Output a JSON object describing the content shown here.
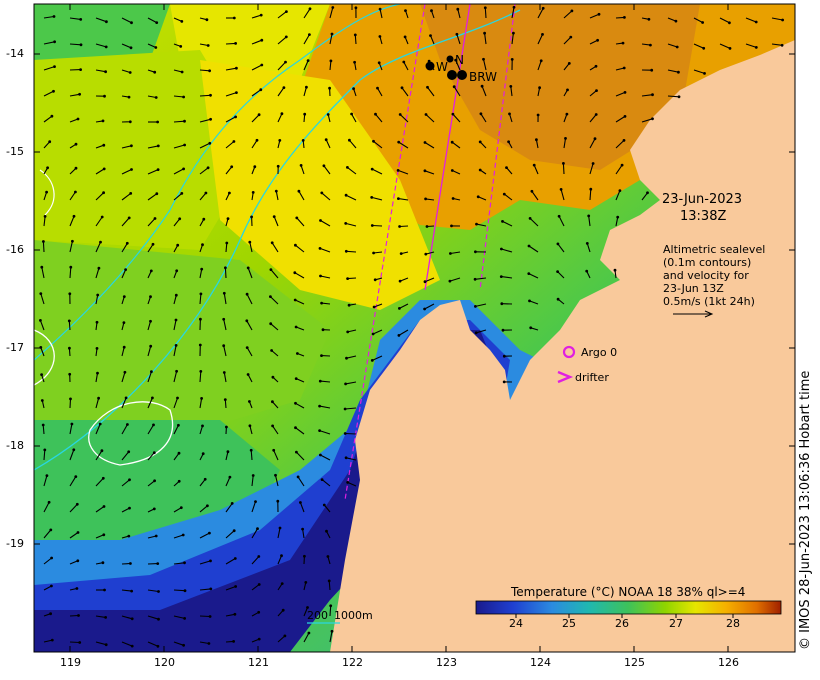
{
  "map": {
    "lon_ticks": [
      "119",
      "120",
      "121",
      "122",
      "123",
      "124",
      "125",
      "126"
    ],
    "lat_ticks": [
      "-14",
      "-15",
      "-16",
      "-17",
      "-18",
      "-19"
    ],
    "timestamp": {
      "date": "23-Jun-2023",
      "time": "13:38Z"
    },
    "sealevel_note": [
      "Altimetric sealevel",
      "(0.1m contours)",
      "and velocity for",
      "23-Jun 13Z",
      "0.5m/s (1kt 24h)"
    ],
    "legend": {
      "argo": "Argo 0",
      "drifter": "drifter"
    },
    "stations": [
      {
        "id": "W",
        "label": "W"
      },
      {
        "id": "N",
        "label": "N"
      },
      {
        "id": "BRW",
        "label": "BRW"
      }
    ],
    "bathy_legend": {
      "shallow": "200",
      "deep": "1000m"
    },
    "colorbar": {
      "title": "Temperature (°C) NOAA 18 38% ql>=4",
      "ticks": [
        "24",
        "25",
        "26",
        "27",
        "28"
      ],
      "colors": [
        "#1a1a8c",
        "#1f3fd0",
        "#2b8be0",
        "#20b8b0",
        "#3ec25a",
        "#8fd400",
        "#e6e600",
        "#f5b000",
        "#e07000",
        "#a02000"
      ]
    },
    "credit": "© IMOS 28-Jun-2023 13:06:36 Hobart time",
    "colors": {
      "land": "#f9c99b",
      "contour_cyan": "#29d7e0",
      "contour_white": "#ffffff",
      "track_magenta": "#e020e0"
    }
  }
}
